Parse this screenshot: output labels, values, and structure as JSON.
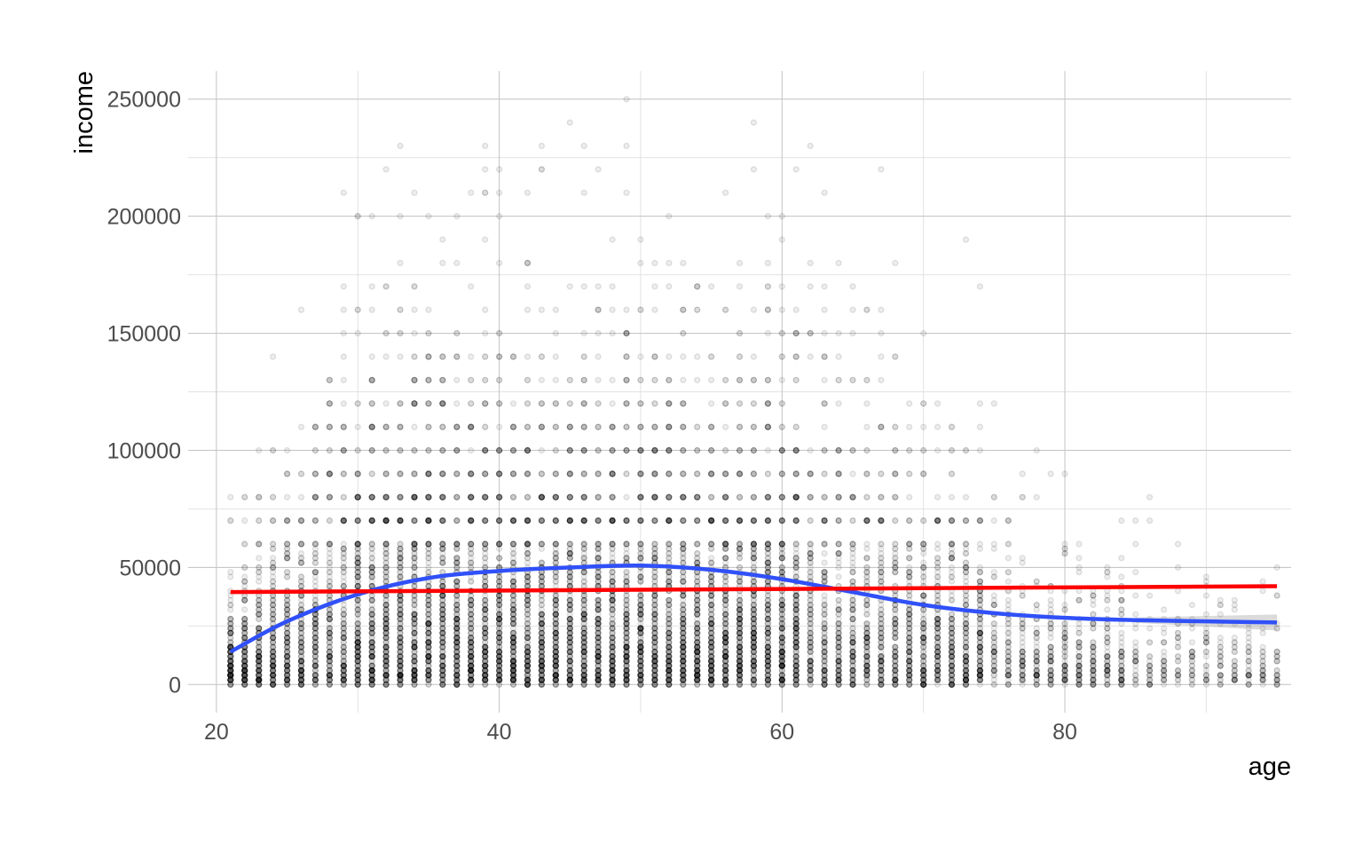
{
  "chart_data": {
    "type": "scatter",
    "title": "",
    "xlabel": "age",
    "ylabel": "income",
    "xlim": [
      18,
      96
    ],
    "ylim": [
      -12000,
      262000
    ],
    "x_ticks": [
      20,
      40,
      60,
      80
    ],
    "y_ticks": [
      0,
      50000,
      100000,
      150000,
      200000,
      250000
    ],
    "x_tick_labels": [
      "20",
      "40",
      "60",
      "80"
    ],
    "y_tick_labels": [
      "0",
      "50000",
      "100000",
      "150000",
      "200000",
      "250000"
    ],
    "grid": true,
    "legend": "none",
    "points": {
      "description_free": true,
      "age_range": [
        21,
        95
      ],
      "income_range": [
        0,
        250000
      ],
      "color": "#000000",
      "opacity": 0.07
    },
    "series": [
      {
        "kind": "smooth",
        "color": "#3050f8",
        "x": [
          21,
          25,
          30,
          35,
          40,
          45,
          50,
          55,
          60,
          65,
          70,
          75,
          80,
          85,
          90,
          95
        ],
        "y": [
          14000,
          27000,
          38500,
          45500,
          48500,
          50000,
          50800,
          49000,
          45000,
          39500,
          34000,
          30500,
          28500,
          27500,
          27000,
          26500
        ]
      },
      {
        "kind": "linear",
        "color": "#ff0000",
        "x": [
          21,
          95
        ],
        "y": [
          39500,
          42000
        ]
      }
    ]
  }
}
